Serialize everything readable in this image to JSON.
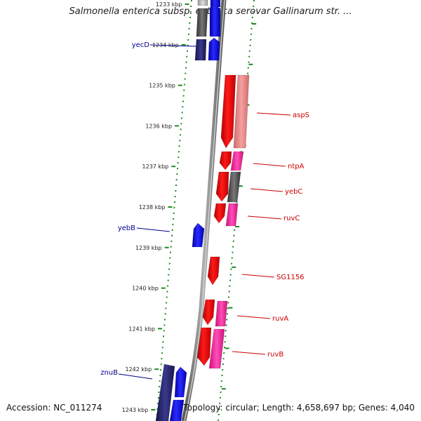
{
  "title": "Salmonella enterica subsp. enterica serovar Gallinarum str. ...",
  "accession": "Accession: NC_011274",
  "topology": "Topology: circular; Length: 4,658,697 bp; Genes: 4,040",
  "colors": {
    "forward_gene": "#ee0000",
    "reverse_gene": "#0000ff",
    "dark_gene": "#1f1f6e",
    "pink_gene": "#ff3aa6",
    "salmon_gene": "#ea8a8a",
    "gray_gene": "#555555",
    "backbone": "#8a8a8a",
    "dots": "#1f8a1f",
    "red_label": "#cc0000",
    "blue_label": "#00008b"
  },
  "ticks": [
    {
      "label": "1233 kbp"
    },
    {
      "label": "1234 kbp"
    },
    {
      "label": "1235 kbp"
    },
    {
      "label": "1236 kbp"
    },
    {
      "label": "1237 kbp"
    },
    {
      "label": "1238 kbp"
    },
    {
      "label": "1239 kbp"
    },
    {
      "label": "1240 kbp"
    },
    {
      "label": "1241 kbp"
    },
    {
      "label": "1242 kbp"
    },
    {
      "label": "1243 kbp"
    }
  ],
  "gene_labels": [
    {
      "name": "yecD",
      "strand": "reverse"
    },
    {
      "name": "aspS",
      "strand": "forward"
    },
    {
      "name": "ntpA",
      "strand": "forward"
    },
    {
      "name": "yebC",
      "strand": "forward"
    },
    {
      "name": "ruvC",
      "strand": "forward"
    },
    {
      "name": "yebB",
      "strand": "reverse"
    },
    {
      "name": "SG1156",
      "strand": "forward"
    },
    {
      "name": "ruvA",
      "strand": "forward"
    },
    {
      "name": "ruvB",
      "strand": "forward"
    },
    {
      "name": "znuB",
      "strand": "reverse"
    }
  ]
}
